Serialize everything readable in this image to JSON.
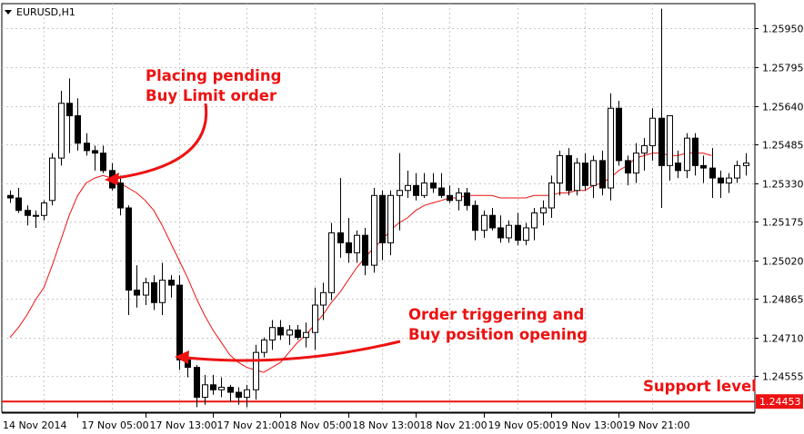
{
  "symbol": "EURUSD,H1",
  "annotations": {
    "placing": [
      "Placing pending",
      "Buy Limit order"
    ],
    "trigger": [
      "Order triggering and",
      "Buy position opening"
    ],
    "support": "Support level"
  },
  "colors": {
    "annotation": "#ee1111",
    "ma": "#ee1111",
    "support": "#ee1111",
    "grid": "#c8c8c8",
    "candle": "#000000"
  },
  "chart_data": {
    "type": "candlestick",
    "price_labels": [
      "1.25950",
      "1.25795",
      "1.25640",
      "1.25485",
      "1.25330",
      "1.25175",
      "1.25020",
      "1.24865",
      "1.24710",
      "1.24555"
    ],
    "current_price_label": "1.24453",
    "support_level": 1.24453,
    "ylim": [
      1.2441,
      1.2605
    ],
    "grid": true,
    "time_labels": [
      "14 Nov 2014",
      "17 Nov 05:00",
      "17 Nov 13:00",
      "17 Nov 21:00",
      "18 Nov 05:00",
      "18 Nov 13:00",
      "18 Nov 21:00",
      "19 Nov 05:00",
      "19 Nov 13:00",
      "19 Nov 21:00"
    ],
    "candles": [
      [
        1.2528,
        1.253,
        1.2525,
        1.2527
      ],
      [
        1.2527,
        1.2531,
        1.2521,
        1.2522
      ],
      [
        1.2522,
        1.2524,
        1.2516,
        1.252
      ],
      [
        1.252,
        1.2522,
        1.2515,
        1.252
      ],
      [
        1.252,
        1.2526,
        1.2518,
        1.2525
      ],
      [
        1.2526,
        1.2545,
        1.2524,
        1.2543
      ],
      [
        1.2543,
        1.257,
        1.254,
        1.2565
      ],
      [
        1.2565,
        1.2575,
        1.2545,
        1.256
      ],
      [
        1.256,
        1.2567,
        1.2546,
        1.2549
      ],
      [
        1.2549,
        1.2553,
        1.2544,
        1.2546
      ],
      [
        1.2546,
        1.2548,
        1.2538,
        1.2545
      ],
      [
        1.2545,
        1.2548,
        1.2537,
        1.2538
      ],
      [
        1.2538,
        1.2541,
        1.253,
        1.2531
      ],
      [
        1.2533,
        1.2536,
        1.252,
        1.2523
      ],
      [
        1.2523,
        1.2524,
        1.248,
        1.249
      ],
      [
        1.249,
        1.25,
        1.2483,
        1.2488
      ],
      [
        1.2488,
        1.2495,
        1.2484,
        1.2493
      ],
      [
        1.2493,
        1.2496,
        1.2482,
        1.2485
      ],
      [
        1.2485,
        1.2501,
        1.248,
        1.2494
      ],
      [
        1.2494,
        1.2496,
        1.2487,
        1.2492
      ],
      [
        1.2492,
        1.2496,
        1.2458,
        1.2462
      ],
      [
        1.2462,
        1.2465,
        1.2455,
        1.2459
      ],
      [
        1.2459,
        1.246,
        1.2443,
        1.2447
      ],
      [
        1.2447,
        1.2456,
        1.2444,
        1.2452
      ],
      [
        1.2452,
        1.2456,
        1.2448,
        1.245
      ],
      [
        1.245,
        1.2455,
        1.2447,
        1.2451
      ],
      [
        1.2451,
        1.2452,
        1.2445,
        1.2449
      ],
      [
        1.2449,
        1.2451,
        1.2444,
        1.2447
      ],
      [
        1.2447,
        1.2452,
        1.2443,
        1.245
      ],
      [
        1.245,
        1.2468,
        1.2446,
        1.2465
      ],
      [
        1.2465,
        1.2471,
        1.2463,
        1.247
      ],
      [
        1.247,
        1.2478,
        1.2466,
        1.2475
      ],
      [
        1.2475,
        1.2478,
        1.247,
        1.2472
      ],
      [
        1.2472,
        1.2476,
        1.2468,
        1.2474
      ],
      [
        1.2474,
        1.2476,
        1.247,
        1.2471
      ],
      [
        1.2471,
        1.2477,
        1.2467,
        1.2473
      ],
      [
        1.2473,
        1.2491,
        1.2466,
        1.2484
      ],
      [
        1.2484,
        1.2493,
        1.2478,
        1.2489
      ],
      [
        1.2489,
        1.2517,
        1.2486,
        1.2513
      ],
      [
        1.2513,
        1.2535,
        1.2503,
        1.2509
      ],
      [
        1.2509,
        1.2519,
        1.2501,
        1.2505
      ],
      [
        1.2505,
        1.2514,
        1.2501,
        1.2512
      ],
      [
        1.2512,
        1.2515,
        1.2496,
        1.25
      ],
      [
        1.25,
        1.2531,
        1.2497,
        1.2528
      ],
      [
        1.2528,
        1.253,
        1.2502,
        1.2509
      ],
      [
        1.2509,
        1.253,
        1.2504,
        1.2528
      ],
      [
        1.2528,
        1.2545,
        1.2514,
        1.253
      ],
      [
        1.253,
        1.2538,
        1.2527,
        1.2532
      ],
      [
        1.2532,
        1.2537,
        1.2526,
        1.2528
      ],
      [
        1.2528,
        1.2537,
        1.2527,
        1.2533
      ],
      [
        1.2533,
        1.2537,
        1.2529,
        1.2531
      ],
      [
        1.2531,
        1.2537,
        1.2527,
        1.2528
      ],
      [
        1.2528,
        1.2532,
        1.2525,
        1.2526
      ],
      [
        1.2526,
        1.2531,
        1.2522,
        1.2529
      ],
      [
        1.2529,
        1.2531,
        1.2522,
        1.2524
      ],
      [
        1.2524,
        1.2526,
        1.251,
        1.2514
      ],
      [
        1.2514,
        1.2522,
        1.2511,
        1.252
      ],
      [
        1.252,
        1.2523,
        1.2514,
        1.2515
      ],
      [
        1.2515,
        1.252,
        1.2509,
        1.2511
      ],
      [
        1.2511,
        1.2518,
        1.2509,
        1.2516
      ],
      [
        1.2516,
        1.2521,
        1.2508,
        1.251
      ],
      [
        1.251,
        1.2517,
        1.2508,
        1.2515
      ],
      [
        1.2515,
        1.2523,
        1.251,
        1.2521
      ],
      [
        1.2521,
        1.2526,
        1.2516,
        1.2523
      ],
      [
        1.2523,
        1.2536,
        1.2519,
        1.2533
      ],
      [
        1.2533,
        1.2546,
        1.2528,
        1.2544
      ],
      [
        1.2544,
        1.2547,
        1.2528,
        1.253
      ],
      [
        1.253,
        1.2543,
        1.2528,
        1.2541
      ],
      [
        1.2541,
        1.2545,
        1.253,
        1.2532
      ],
      [
        1.2532,
        1.2544,
        1.2527,
        1.2542
      ],
      [
        1.2542,
        1.2546,
        1.2528,
        1.2531
      ],
      [
        1.2531,
        1.2569,
        1.2526,
        1.2563
      ],
      [
        1.2563,
        1.2566,
        1.254,
        1.2542
      ],
      [
        1.2542,
        1.2544,
        1.2532,
        1.2537
      ],
      [
        1.2537,
        1.2549,
        1.2533,
        1.2545
      ],
      [
        1.2545,
        1.2551,
        1.2538,
        1.2548
      ],
      [
        1.2548,
        1.2563,
        1.2542,
        1.2559
      ],
      [
        1.2559,
        1.2603,
        1.2523,
        1.254
      ],
      [
        1.254,
        1.256,
        1.2534,
        1.256
      ],
      [
        1.2541,
        1.2546,
        1.2535,
        1.2538
      ],
      [
        1.2538,
        1.2553,
        1.2535,
        1.2551
      ],
      [
        1.2551,
        1.2553,
        1.2536,
        1.254
      ],
      [
        1.254,
        1.2544,
        1.2533,
        1.2539
      ],
      [
        1.2539,
        1.2547,
        1.2527,
        1.2535
      ],
      [
        1.2535,
        1.2538,
        1.2527,
        1.2533
      ],
      [
        1.2533,
        1.2537,
        1.2529,
        1.2535
      ],
      [
        1.2535,
        1.2542,
        1.2533,
        1.254
      ],
      [
        1.254,
        1.2545,
        1.2536,
        1.2541
      ]
    ],
    "ma": [
      1.2471,
      1.2475,
      1.248,
      1.2486,
      1.2491,
      1.25,
      1.251,
      1.252,
      1.2528,
      1.2533,
      1.2535,
      1.2536,
      1.2535,
      1.2533,
      1.2531,
      1.2529,
      1.2526,
      1.2522,
      1.2516,
      1.2509,
      1.2502,
      1.2495,
      1.2487,
      1.248,
      1.2474,
      1.2469,
      1.2464,
      1.2461,
      1.2459,
      1.2458,
      1.2457,
      1.2459,
      1.2461,
      1.2465,
      1.2469,
      1.2472,
      1.2476,
      1.248,
      1.2485,
      1.2489,
      1.2494,
      1.2499,
      1.2503,
      1.2507,
      1.251,
      1.2514,
      1.2517,
      1.2519,
      1.2522,
      1.2524,
      1.2525,
      1.2526,
      1.2527,
      1.2527,
      1.2528,
      1.2528,
      1.2528,
      1.2528,
      1.2527,
      1.2527,
      1.2527,
      1.2527,
      1.2528,
      1.2528,
      1.2528,
      1.2529,
      1.2529,
      1.253,
      1.253,
      1.2532,
      1.2533,
      1.2535,
      1.2538,
      1.254,
      1.2543,
      1.2544,
      1.2545,
      1.2545,
      1.2544,
      1.2544,
      1.2545,
      1.2545,
      1.2545,
      1.2544
    ]
  }
}
